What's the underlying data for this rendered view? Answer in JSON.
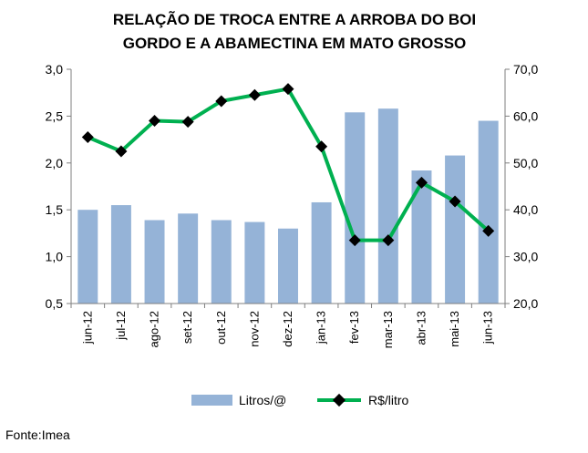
{
  "chart_data": {
    "type": "bar+line",
    "title_lines": [
      "RELAÇÃO DE TROCA ENTRE A ARROBA DO BOI",
      "GORDO E A ABAMECTINA EM MATO GROSSO"
    ],
    "categories": [
      "jun-12",
      "jul-12",
      "ago-12",
      "set-12",
      "out-12",
      "nov-12",
      "dez-12",
      "jan-13",
      "fev-13",
      "mar-13",
      "abr-13",
      "mai-13",
      "jun-13"
    ],
    "series": [
      {
        "name": "Litros/@",
        "type": "bar",
        "axis": "left",
        "color": "#95b3d7",
        "values": [
          1.5,
          1.55,
          1.39,
          1.46,
          1.39,
          1.37,
          1.3,
          1.58,
          2.54,
          2.58,
          1.92,
          2.08,
          2.45
        ]
      },
      {
        "name": "R$/litro",
        "type": "line",
        "axis": "right",
        "color": "#00b050",
        "marker_color": "#000000",
        "values": [
          55.5,
          52.5,
          59.0,
          58.8,
          63.2,
          64.5,
          65.8,
          53.5,
          33.5,
          33.5,
          45.8,
          41.8,
          35.5
        ]
      }
    ],
    "y_left": {
      "min": 0.5,
      "max": 3.0,
      "ticks": [
        "0,5",
        "1,0",
        "1,5",
        "2,0",
        "2,5",
        "3,0"
      ]
    },
    "y_right": {
      "min": 20,
      "max": 70,
      "ticks": [
        "20,0",
        "30,0",
        "40,0",
        "50,0",
        "60,0",
        "70,0"
      ]
    },
    "legend": [
      "Litros/@",
      "R$/litro"
    ],
    "source": "Fonte:Imea"
  }
}
